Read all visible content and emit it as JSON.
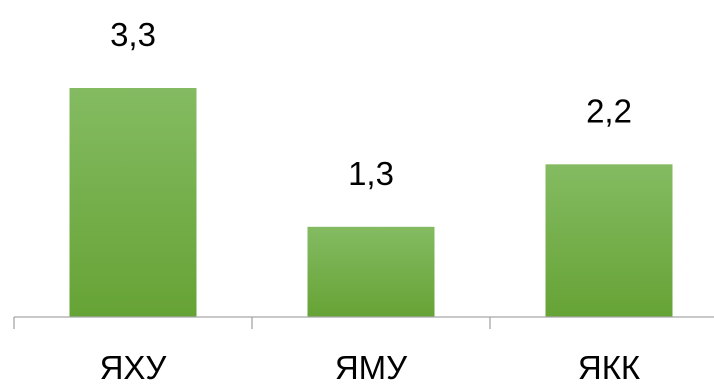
{
  "chart_data": {
    "type": "bar",
    "categories": [
      "ЯХУ",
      "ЯМУ",
      "ЯКК"
    ],
    "values": [
      3.3,
      1.3,
      2.2
    ],
    "data_labels": [
      "3,3",
      "1,3",
      "2,2"
    ],
    "title": "",
    "xlabel": "",
    "ylabel": "",
    "ylim": [
      0,
      3.3
    ],
    "grid": false,
    "legend": "none",
    "colors": {
      "bar_top": "#84bb62",
      "bar_bottom": "#66a335",
      "axis": "#a6a6a6",
      "text": "#000000"
    }
  }
}
